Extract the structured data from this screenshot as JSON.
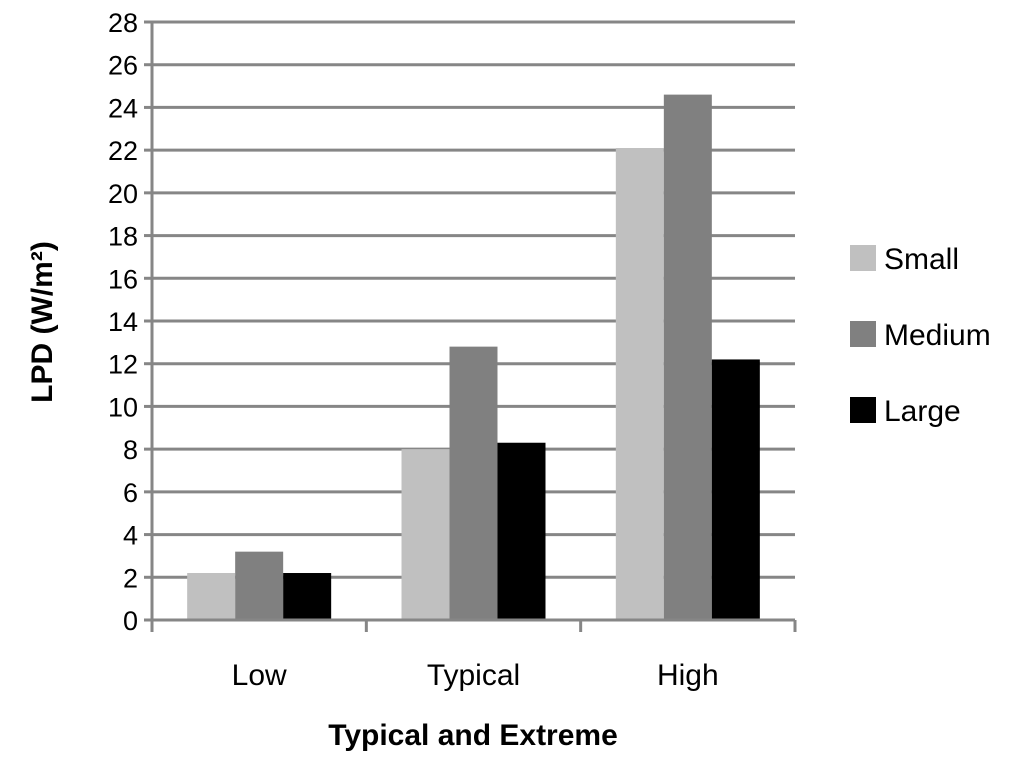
{
  "chart_data": {
    "type": "bar",
    "title": "",
    "xlabel": "Typical and Extreme",
    "ylabel": "LPD (W/m²)",
    "categories": [
      "Low",
      "Typical",
      "High"
    ],
    "series": [
      {
        "name": "Small",
        "values": [
          2.2,
          8.0,
          22.1
        ],
        "color": "#c0c0c0"
      },
      {
        "name": "Medium",
        "values": [
          3.2,
          12.8,
          24.6
        ],
        "color": "#808080"
      },
      {
        "name": "Large",
        "values": [
          2.2,
          8.3,
          12.2
        ],
        "color": "#000000"
      }
    ],
    "ylim": [
      0,
      28
    ],
    "yticks": [
      0,
      2,
      4,
      6,
      8,
      10,
      12,
      14,
      16,
      18,
      20,
      22,
      24,
      26,
      28
    ],
    "grid": true,
    "legend_position": "right"
  }
}
